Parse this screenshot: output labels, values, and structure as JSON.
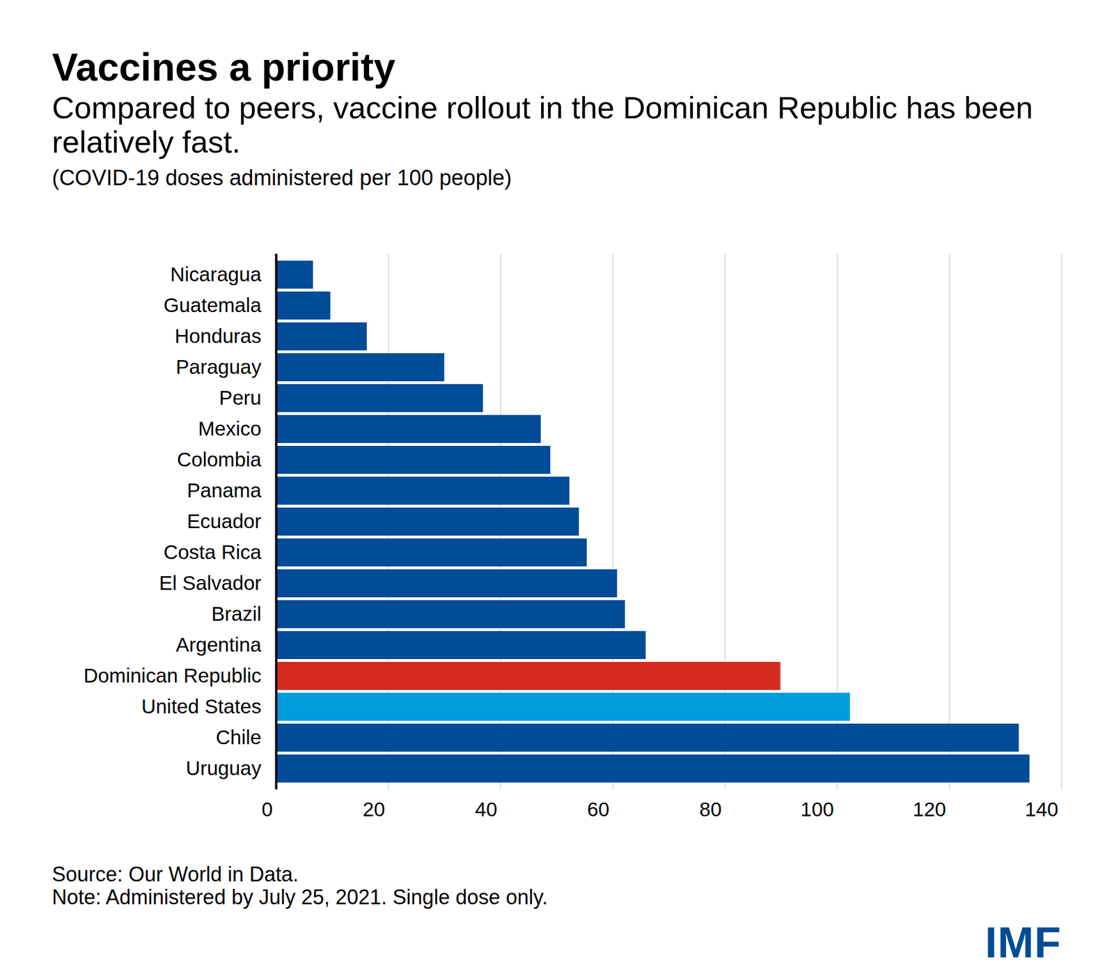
{
  "chart_data": {
    "type": "bar",
    "orientation": "horizontal",
    "title": "Vaccines a priority",
    "subtitle": "Compared to peers, vaccine rollout in the Dominican Republic has been relatively fast.",
    "xlabel": "(COVID-19 doses administered per 100 people)",
    "source": "Source: Our World in Data.",
    "note": "Note: Administered by July 25, 2021. Single dose only.",
    "logo": "IMF",
    "categories": [
      "Nicaragua",
      "Guatemala",
      "Honduras",
      "Paraguay",
      "Peru",
      "Mexico",
      "Colombia",
      "Panama",
      "Ecuador",
      "Costa Rica",
      "El Salvador",
      "Brazil",
      "Argentina",
      "Dominican Republic",
      "United States",
      "Chile",
      "Uruguay"
    ],
    "values": [
      6.6,
      9.7,
      16.2,
      30.0,
      36.9,
      47.2,
      48.9,
      52.3,
      54.0,
      55.4,
      60.8,
      62.2,
      65.9,
      89.9,
      102.3,
      132.4,
      134.3
    ],
    "colors": [
      "#004C97",
      "#004C97",
      "#004C97",
      "#004C97",
      "#004C97",
      "#004C97",
      "#004C97",
      "#004C97",
      "#004C97",
      "#004C97",
      "#004C97",
      "#004C97",
      "#004C97",
      "#D52B1E",
      "#009CDE",
      "#004C97",
      "#004C97"
    ],
    "xlim": [
      0,
      140
    ],
    "xticks": [
      0,
      20,
      40,
      60,
      80,
      100,
      120,
      140
    ],
    "grid": true
  }
}
